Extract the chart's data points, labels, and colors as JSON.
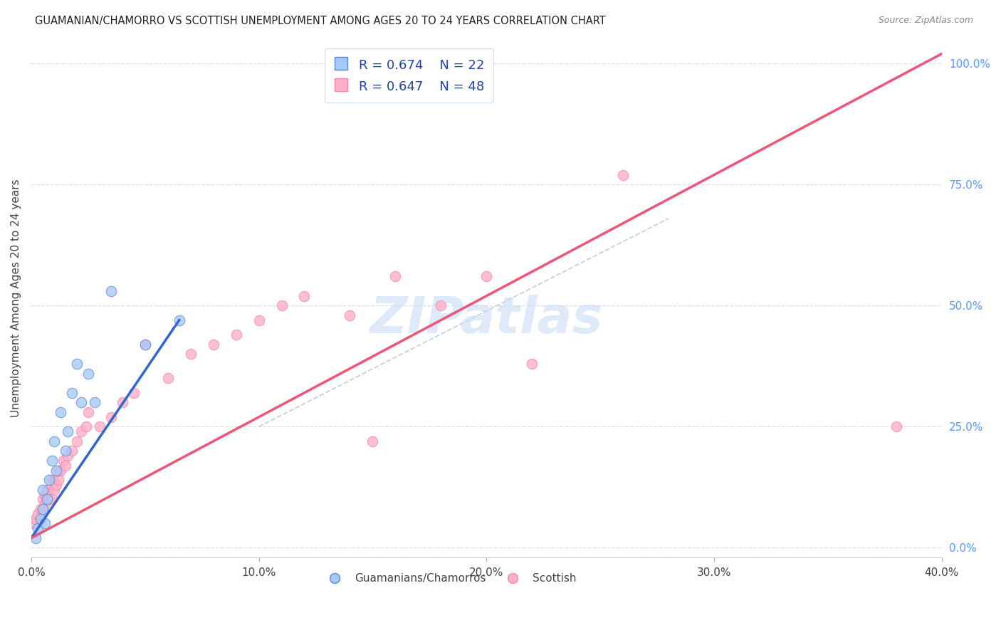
{
  "title": "GUAMANIAN/CHAMORRO VS SCOTTISH UNEMPLOYMENT AMONG AGES 20 TO 24 YEARS CORRELATION CHART",
  "source": "Source: ZipAtlas.com",
  "ylabel": "Unemployment Among Ages 20 to 24 years",
  "xlim": [
    0.0,
    0.4
  ],
  "ylim": [
    -0.02,
    1.05
  ],
  "xticks": [
    0.0,
    0.1,
    0.2,
    0.3,
    0.4
  ],
  "xtick_labels": [
    "0.0%",
    "10.0%",
    "20.0%",
    "30.0%",
    "40.0%"
  ],
  "yticks_right": [
    0.0,
    0.25,
    0.5,
    0.75,
    1.0
  ],
  "ytick_labels_right": [
    "0.0%",
    "25.0%",
    "50.0%",
    "75.0%",
    "100.0%"
  ],
  "guamanian_color": "#a8c8f8",
  "guamanian_edge": "#5588cc",
  "scottish_color": "#ffb0c8",
  "scottish_edge": "#ee88aa",
  "blue_line_color": "#3366cc",
  "pink_line_color": "#ee5577",
  "diag_line_color": "#bbccdd",
  "watermark_color": "#c8ddf8",
  "background_color": "#ffffff",
  "grid_color": "#ddddee",
  "guamanian_x": [
    0.002,
    0.003,
    0.004,
    0.005,
    0.005,
    0.006,
    0.007,
    0.008,
    0.009,
    0.01,
    0.011,
    0.013,
    0.015,
    0.016,
    0.018,
    0.02,
    0.022,
    0.025,
    0.028,
    0.035,
    0.05,
    0.065
  ],
  "guamanian_y": [
    0.02,
    0.04,
    0.06,
    0.08,
    0.12,
    0.05,
    0.1,
    0.14,
    0.18,
    0.22,
    0.16,
    0.28,
    0.2,
    0.24,
    0.32,
    0.38,
    0.3,
    0.36,
    0.3,
    0.53,
    0.42,
    0.47
  ],
  "scottish_x": [
    0.001,
    0.002,
    0.003,
    0.004,
    0.005,
    0.005,
    0.006,
    0.006,
    0.007,
    0.007,
    0.008,
    0.008,
    0.009,
    0.009,
    0.01,
    0.01,
    0.011,
    0.012,
    0.012,
    0.013,
    0.014,
    0.015,
    0.016,
    0.018,
    0.02,
    0.022,
    0.024,
    0.025,
    0.03,
    0.035,
    0.04,
    0.045,
    0.05,
    0.06,
    0.07,
    0.08,
    0.09,
    0.1,
    0.11,
    0.12,
    0.14,
    0.15,
    0.16,
    0.18,
    0.2,
    0.22,
    0.26,
    0.38
  ],
  "scottish_y": [
    0.05,
    0.06,
    0.07,
    0.08,
    0.08,
    0.1,
    0.09,
    0.11,
    0.1,
    0.12,
    0.1,
    0.12,
    0.1,
    0.14,
    0.12,
    0.14,
    0.13,
    0.14,
    0.16,
    0.16,
    0.18,
    0.17,
    0.19,
    0.2,
    0.22,
    0.24,
    0.25,
    0.28,
    0.25,
    0.27,
    0.3,
    0.32,
    0.42,
    0.35,
    0.4,
    0.42,
    0.44,
    0.47,
    0.5,
    0.52,
    0.48,
    0.22,
    0.56,
    0.5,
    0.56,
    0.38,
    0.77,
    0.25
  ],
  "blue_line_x": [
    0.0,
    0.065
  ],
  "blue_line_y": [
    0.02,
    0.47
  ],
  "pink_line_x": [
    0.0,
    0.4
  ],
  "pink_line_y": [
    0.02,
    1.02
  ],
  "diag_line_x": [
    0.1,
    0.28
  ],
  "diag_line_y": [
    0.25,
    0.68
  ]
}
